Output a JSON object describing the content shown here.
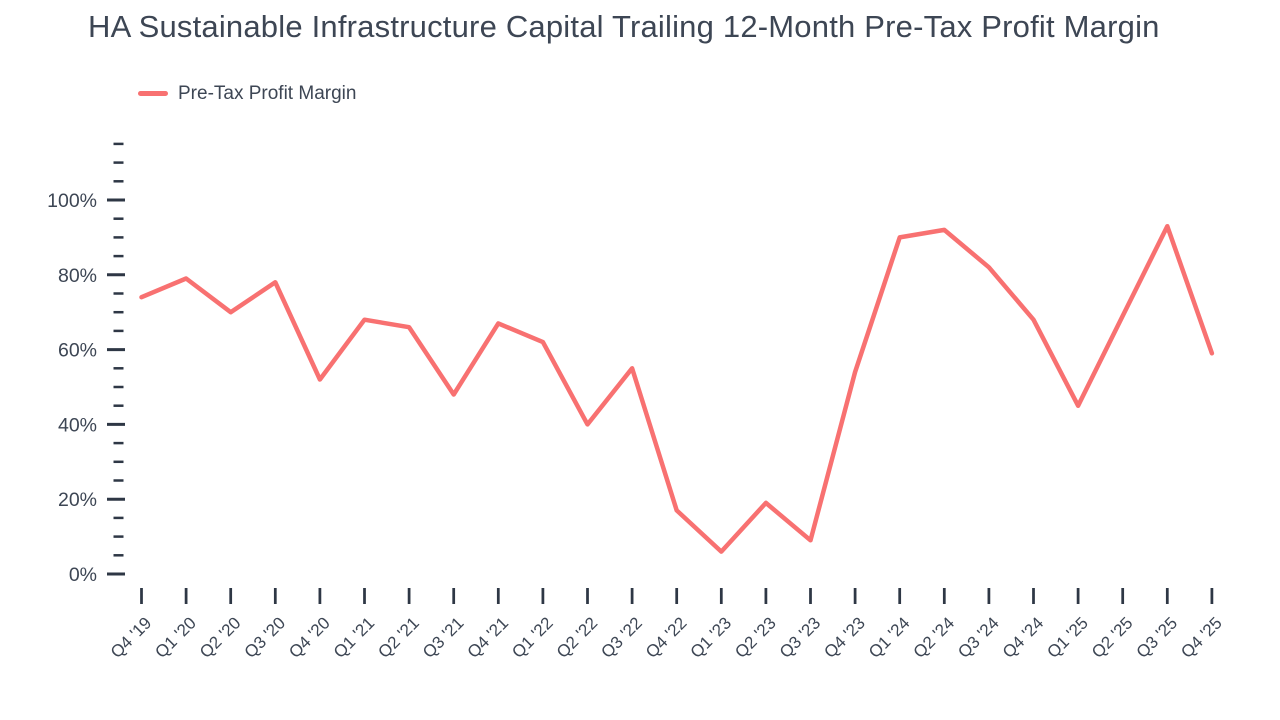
{
  "title": "HA Sustainable Infrastructure Capital Trailing 12-Month Pre-Tax Profit Margin",
  "theme": {
    "accent": "#f87171",
    "text": "#3d4654",
    "tick": "#2e3745",
    "background": "#ffffff"
  },
  "legend": {
    "items": [
      {
        "label": "Pre-Tax Profit Margin",
        "color": "#f87171"
      }
    ]
  },
  "chart_data": {
    "type": "line",
    "title": "HA Sustainable Infrastructure Capital Trailing 12-Month Pre-Tax Profit Margin",
    "xlabel": "",
    "ylabel": "",
    "grid": false,
    "legend_position": "top-left",
    "categories": [
      "Q4 '19",
      "Q1 '20",
      "Q2 '20",
      "Q3 '20",
      "Q4 '20",
      "Q1 '21",
      "Q2 '21",
      "Q3 '21",
      "Q4 '21",
      "Q1 '22",
      "Q2 '22",
      "Q3 '22",
      "Q4 '22",
      "Q1 '23",
      "Q2 '23",
      "Q3 '23",
      "Q4 '23",
      "Q1 '24",
      "Q2 '24",
      "Q3 '24",
      "Q4 '24",
      "Q1 '25",
      "Q2 '25",
      "Q3 '25",
      "Q4 '25"
    ],
    "series": [
      {
        "name": "Pre-Tax Profit Margin",
        "color": "#f87171",
        "unit": "%",
        "values": [
          74,
          79,
          70,
          78,
          52,
          68,
          66,
          48,
          67,
          62,
          40,
          55,
          17,
          6,
          19,
          9,
          54,
          90,
          92,
          82,
          68,
          45,
          69,
          93,
          59
        ]
      }
    ],
    "y_axis": {
      "min": 0,
      "max": 117,
      "minor_tick_step": 5,
      "major_tick_step": 20,
      "top_tick_value": 115,
      "tick_suffix": "%",
      "major_ticks": [
        {
          "value": 0,
          "label": "0%"
        },
        {
          "value": 20,
          "label": "20%"
        },
        {
          "value": 40,
          "label": "40%"
        },
        {
          "value": 60,
          "label": "60%"
        },
        {
          "value": 80,
          "label": "80%"
        },
        {
          "value": 100,
          "label": "100%"
        }
      ]
    },
    "x_axis": {
      "tick_label_rotation": -45
    }
  }
}
